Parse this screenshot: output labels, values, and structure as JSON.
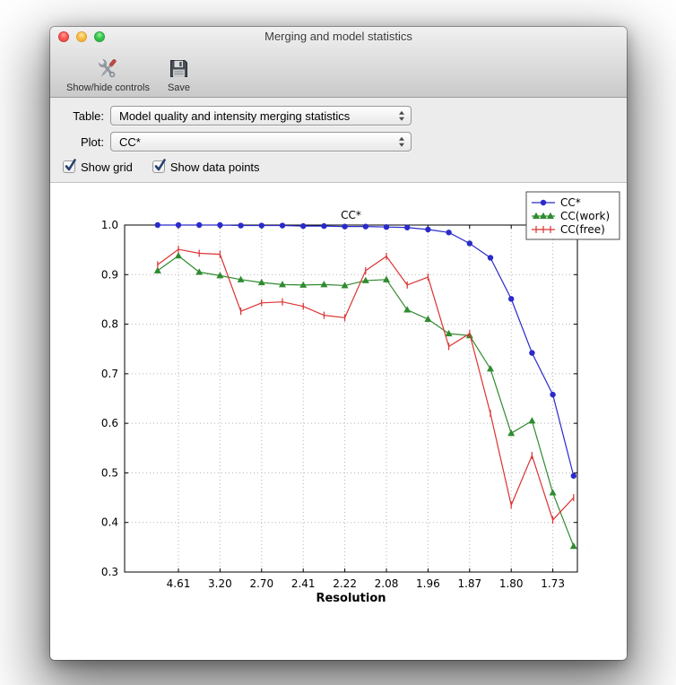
{
  "window": {
    "title": "Merging and model statistics"
  },
  "toolbar": {
    "items": [
      {
        "label": "Show/hide controls",
        "icon": "tools-icon"
      },
      {
        "label": "Save",
        "icon": "save-icon"
      }
    ]
  },
  "controls": {
    "table": {
      "label": "Table:",
      "value": "Model quality and intensity merging statistics"
    },
    "plot": {
      "label": "Plot:",
      "value": "CC*"
    },
    "checkboxes": [
      {
        "label": "Show grid",
        "checked": true
      },
      {
        "label": "Show data points",
        "checked": true
      }
    ]
  },
  "chart_data": {
    "type": "line",
    "title": "CC*",
    "xlabel": "Resolution",
    "ylabel": "",
    "ylim": [
      0.3,
      1.0
    ],
    "yticks": [
      0.3,
      0.4,
      0.5,
      0.6,
      0.7,
      0.8,
      0.9,
      1.0
    ],
    "grid": true,
    "legend_position": "upper right",
    "n_bins": 21,
    "xtick_bin_indices": [
      1,
      3,
      5,
      7,
      9,
      11,
      13,
      15,
      17,
      19
    ],
    "xtick_labels": [
      "4.61",
      "3.20",
      "2.70",
      "2.41",
      "2.22",
      "2.08",
      "1.96",
      "1.87",
      "1.80",
      "1.73"
    ],
    "series": [
      {
        "name": "CC*",
        "color": "#2a2acc",
        "marker": "circle",
        "values": [
          1.0,
          1.0,
          1.0,
          1.0,
          0.999,
          0.999,
          0.999,
          0.998,
          0.998,
          0.997,
          0.997,
          0.996,
          0.995,
          0.991,
          0.985,
          0.963,
          0.934,
          0.851,
          0.742,
          0.658,
          0.494
        ]
      },
      {
        "name": "CC(work)",
        "color": "#2e8b2e",
        "marker": "triangle",
        "values": [
          0.908,
          0.938,
          0.905,
          0.898,
          0.89,
          0.884,
          0.88,
          0.879,
          0.88,
          0.878,
          0.888,
          0.89,
          0.829,
          0.81,
          0.781,
          0.777,
          0.71,
          0.58,
          0.605,
          0.46,
          0.352
        ]
      },
      {
        "name": "CC(free)",
        "color": "#dc3232",
        "marker": "vline",
        "values": [
          0.92,
          0.951,
          0.943,
          0.941,
          0.826,
          0.843,
          0.845,
          0.836,
          0.818,
          0.813,
          0.908,
          0.937,
          0.879,
          0.895,
          0.755,
          0.781,
          0.62,
          0.435,
          0.535,
          0.405,
          0.45
        ]
      }
    ]
  }
}
